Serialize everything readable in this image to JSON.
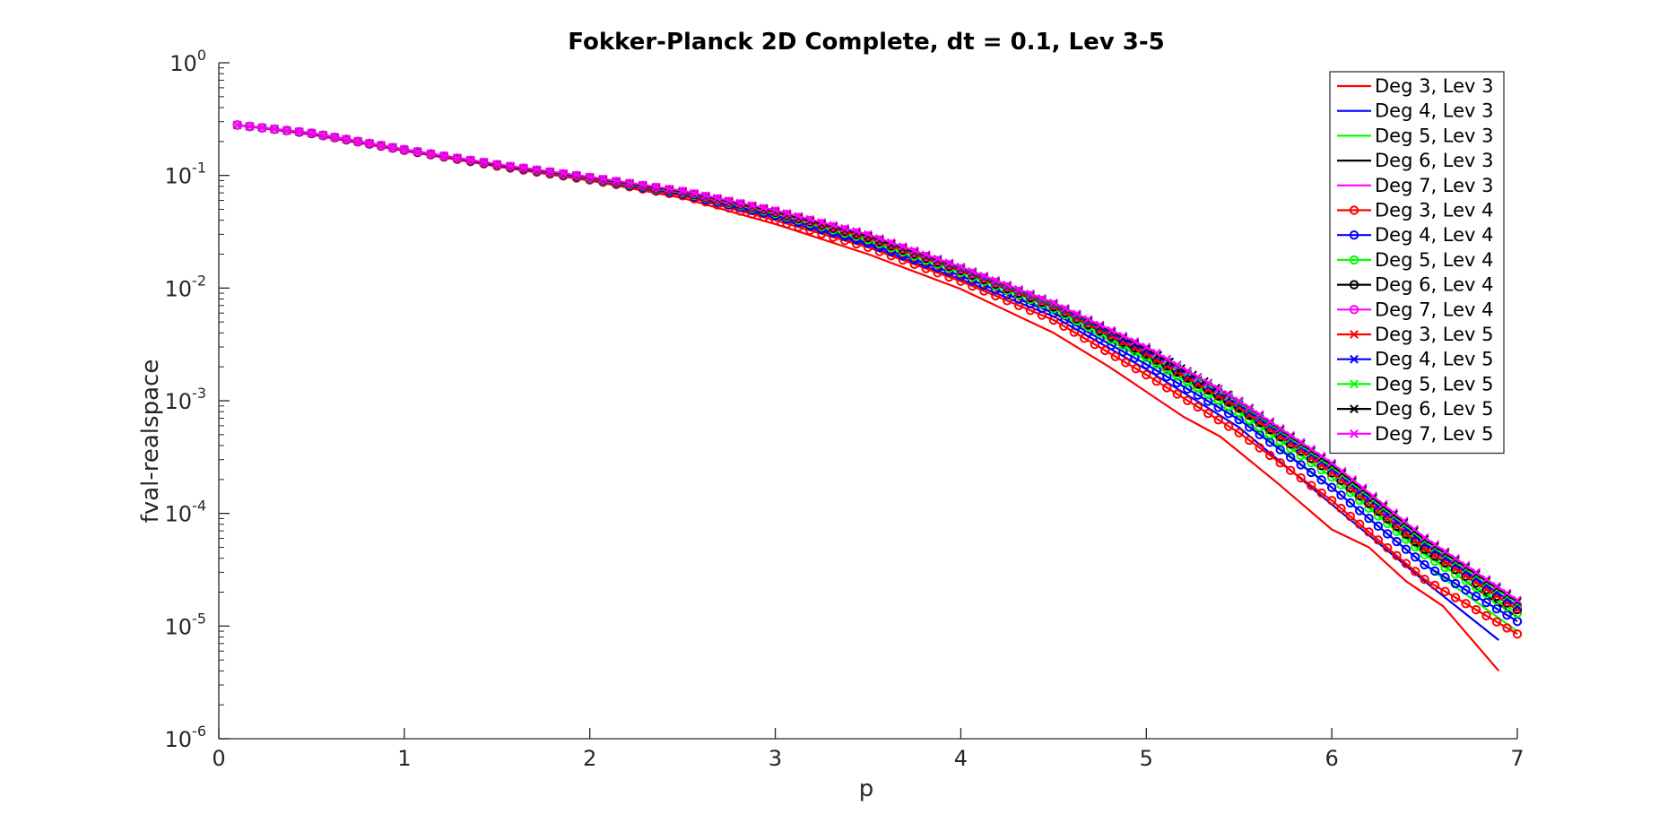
{
  "chart_data": {
    "type": "line",
    "title": "Fokker-Planck 2D Complete, dt = 0.1, Lev 3-5",
    "xlabel": "p",
    "ylabel": "fval-realspace",
    "xlim": [
      0,
      7
    ],
    "ylim": [
      1e-06,
      1
    ],
    "yscale": "log",
    "grid": false,
    "legend_position": "top-right",
    "x_ticks": [
      "0",
      "1",
      "2",
      "3",
      "4",
      "5",
      "6",
      "7"
    ],
    "y_ticks": [
      {
        "base": "10",
        "exp": "0"
      },
      {
        "base": "10",
        "exp": "-1"
      },
      {
        "base": "10",
        "exp": "-2"
      },
      {
        "base": "10",
        "exp": "-3"
      },
      {
        "base": "10",
        "exp": "-4"
      },
      {
        "base": "10",
        "exp": "-5"
      },
      {
        "base": "10",
        "exp": "-6"
      }
    ],
    "series": [
      {
        "name": "Deg 3, Lev 3",
        "color": "#ff0000",
        "marker": "none",
        "x": [
          0.1,
          0.5,
          1.0,
          1.5,
          2.0,
          2.5,
          3.0,
          3.5,
          4.0,
          4.5,
          4.8,
          5.0,
          5.2,
          5.4,
          5.7,
          6.0,
          6.2,
          6.4,
          6.6,
          6.9
        ],
        "y": [
          0.28,
          0.23,
          0.165,
          0.12,
          0.09,
          0.063,
          0.037,
          0.02,
          0.0098,
          0.004,
          0.002,
          0.0012,
          0.00072,
          0.00048,
          0.00019,
          7.2e-05,
          5e-05,
          2.5e-05,
          1.5e-05,
          4e-06
        ]
      },
      {
        "name": "Deg 4, Lev 3",
        "color": "#0000ff",
        "marker": "none",
        "x": [
          0.1,
          0.5,
          1.0,
          1.5,
          2.0,
          2.5,
          3.0,
          3.5,
          4.0,
          4.5,
          5.0,
          5.5,
          6.0,
          6.5,
          6.9
        ],
        "y": [
          0.28,
          0.235,
          0.167,
          0.122,
          0.092,
          0.067,
          0.042,
          0.024,
          0.012,
          0.0056,
          0.0019,
          0.00058,
          0.00012,
          2.5e-05,
          7.5e-06
        ]
      },
      {
        "name": "Deg 5, Lev 3",
        "color": "#00ff00",
        "marker": "none",
        "x": [
          0.1,
          0.5,
          1.0,
          1.5,
          2.0,
          2.5,
          3.0,
          3.5,
          4.0,
          4.5,
          5.0,
          5.5,
          6.0,
          6.5,
          7.0
        ],
        "y": [
          0.28,
          0.236,
          0.168,
          0.123,
          0.093,
          0.069,
          0.045,
          0.026,
          0.013,
          0.0062,
          0.0023,
          0.00072,
          0.00017,
          3.5e-05,
          9e-06
        ]
      },
      {
        "name": "Deg 6, Lev 3",
        "color": "#000000",
        "marker": "none",
        "x": [
          0.1,
          0.5,
          1.0,
          1.5,
          2.0,
          2.5,
          3.0,
          3.5,
          4.0,
          4.5,
          5.0,
          5.5,
          6.0,
          6.5,
          7.0
        ],
        "y": [
          0.28,
          0.236,
          0.168,
          0.124,
          0.094,
          0.07,
          0.046,
          0.027,
          0.014,
          0.0066,
          0.0025,
          0.00082,
          0.00021,
          4.5e-05,
          1.2e-05
        ]
      },
      {
        "name": "Deg 7, Lev 3",
        "color": "#ff00ff",
        "marker": "none",
        "x": [
          0.1,
          0.5,
          1.0,
          1.5,
          2.0,
          2.5,
          3.0,
          3.5,
          4.0,
          4.5,
          5.0,
          5.5,
          6.0,
          6.5,
          7.0
        ],
        "y": [
          0.28,
          0.237,
          0.169,
          0.124,
          0.095,
          0.071,
          0.047,
          0.028,
          0.0145,
          0.0069,
          0.0027,
          0.0009,
          0.00024,
          5.3e-05,
          1.4e-05
        ]
      },
      {
        "name": "Deg 3, Lev 4",
        "color": "#ff0000",
        "marker": "o",
        "x": [
          0.1,
          0.5,
          1.0,
          1.5,
          2.0,
          2.5,
          3.0,
          3.5,
          4.0,
          4.5,
          5.0,
          5.5,
          6.0,
          6.5,
          7.0
        ],
        "y": [
          0.28,
          0.235,
          0.167,
          0.121,
          0.091,
          0.066,
          0.04,
          0.023,
          0.0115,
          0.0052,
          0.0017,
          0.00052,
          0.00013,
          2.6e-05,
          8.5e-06
        ]
      },
      {
        "name": "Deg 4, Lev 4",
        "color": "#0000ff",
        "marker": "o",
        "x": [
          0.1,
          0.5,
          1.0,
          1.5,
          2.0,
          2.5,
          3.0,
          3.5,
          4.0,
          4.5,
          5.0,
          5.5,
          6.0,
          6.5,
          7.0
        ],
        "y": [
          0.28,
          0.236,
          0.168,
          0.123,
          0.093,
          0.068,
          0.044,
          0.025,
          0.0128,
          0.006,
          0.0021,
          0.00068,
          0.00017,
          3.5e-05,
          1.1e-05
        ]
      },
      {
        "name": "Deg 5, Lev 4",
        "color": "#00ff00",
        "marker": "o",
        "x": [
          0.1,
          0.5,
          1.0,
          1.5,
          2.0,
          2.5,
          3.0,
          3.5,
          4.0,
          4.5,
          5.0,
          5.5,
          6.0,
          6.5,
          7.0
        ],
        "y": [
          0.28,
          0.237,
          0.169,
          0.124,
          0.094,
          0.07,
          0.046,
          0.027,
          0.0138,
          0.0066,
          0.0024,
          0.00079,
          0.00021,
          4.3e-05,
          1.3e-05
        ]
      },
      {
        "name": "Deg 6, Lev 4",
        "color": "#000000",
        "marker": "o",
        "x": [
          0.1,
          0.5,
          1.0,
          1.5,
          2.0,
          2.5,
          3.0,
          3.5,
          4.0,
          4.5,
          5.0,
          5.5,
          6.0,
          6.5,
          7.0
        ],
        "y": [
          0.28,
          0.237,
          0.169,
          0.124,
          0.095,
          0.071,
          0.047,
          0.028,
          0.0143,
          0.0068,
          0.0026,
          0.00086,
          0.00023,
          4.8e-05,
          1.4e-05
        ]
      },
      {
        "name": "Deg 7, Lev 4",
        "color": "#ff00ff",
        "marker": "o",
        "x": [
          0.1,
          0.5,
          1.0,
          1.5,
          2.0,
          2.5,
          3.0,
          3.5,
          4.0,
          4.5,
          5.0,
          5.5,
          6.0,
          6.5,
          7.0
        ],
        "y": [
          0.28,
          0.238,
          0.17,
          0.125,
          0.096,
          0.072,
          0.048,
          0.029,
          0.0148,
          0.0071,
          0.0028,
          0.00093,
          0.00025,
          5.4e-05,
          1.5e-05
        ]
      },
      {
        "name": "Deg 3, Lev 5",
        "color": "#ff0000",
        "marker": "x",
        "x": [
          0.1,
          0.5,
          1.0,
          1.5,
          2.0,
          2.5,
          3.0,
          3.5,
          4.0,
          4.5,
          5.0,
          5.5,
          6.0,
          6.5,
          7.0
        ],
        "y": [
          0.28,
          0.237,
          0.169,
          0.124,
          0.095,
          0.071,
          0.047,
          0.028,
          0.0145,
          0.0069,
          0.0026,
          0.00087,
          0.00023,
          4.9e-05,
          1.4e-05
        ]
      },
      {
        "name": "Deg 4, Lev 5",
        "color": "#0000ff",
        "marker": "x",
        "x": [
          0.1,
          0.5,
          1.0,
          1.5,
          2.0,
          2.5,
          3.0,
          3.5,
          4.0,
          4.5,
          5.0,
          5.5,
          6.0,
          6.5,
          7.0
        ],
        "y": [
          0.28,
          0.237,
          0.17,
          0.125,
          0.096,
          0.072,
          0.048,
          0.029,
          0.0149,
          0.0071,
          0.0028,
          0.00093,
          0.00025,
          5.4e-05,
          1.5e-05
        ]
      },
      {
        "name": "Deg 5, Lev 5",
        "color": "#00ff00",
        "marker": "x",
        "x": [
          0.1,
          0.5,
          1.0,
          1.5,
          2.0,
          2.5,
          3.0,
          3.5,
          4.0,
          4.5,
          5.0,
          5.5,
          6.0,
          6.5,
          7.0
        ],
        "y": [
          0.28,
          0.238,
          0.17,
          0.125,
          0.096,
          0.072,
          0.048,
          0.029,
          0.0151,
          0.0072,
          0.0029,
          0.00097,
          0.00026,
          5.7e-05,
          1.6e-05
        ]
      },
      {
        "name": "Deg 6, Lev 5",
        "color": "#000000",
        "marker": "x",
        "x": [
          0.1,
          0.5,
          1.0,
          1.5,
          2.0,
          2.5,
          3.0,
          3.5,
          4.0,
          4.5,
          5.0,
          5.5,
          6.0,
          6.5,
          7.0
        ],
        "y": [
          0.28,
          0.238,
          0.17,
          0.125,
          0.096,
          0.072,
          0.048,
          0.029,
          0.0152,
          0.0073,
          0.0029,
          0.00099,
          0.00027,
          5.9e-05,
          1.65e-05
        ]
      },
      {
        "name": "Deg 7, Lev 5",
        "color": "#ff00ff",
        "marker": "x",
        "x": [
          0.1,
          0.5,
          1.0,
          1.5,
          2.0,
          2.5,
          3.0,
          3.5,
          4.0,
          4.5,
          5.0,
          5.5,
          6.0,
          6.5,
          7.0
        ],
        "y": [
          0.28,
          0.238,
          0.17,
          0.126,
          0.097,
          0.073,
          0.049,
          0.03,
          0.0154,
          0.0074,
          0.003,
          0.001,
          0.00028,
          6.1e-05,
          1.7e-05
        ]
      }
    ]
  }
}
